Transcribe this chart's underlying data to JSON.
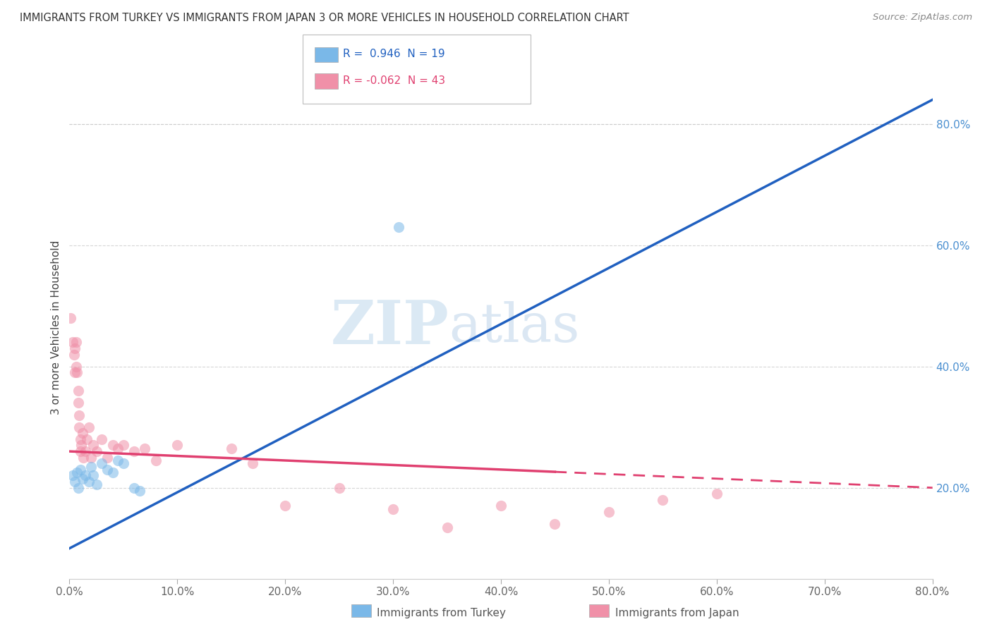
{
  "title": "IMMIGRANTS FROM TURKEY VS IMMIGRANTS FROM JAPAN 3 OR MORE VEHICLES IN HOUSEHOLD CORRELATION CHART",
  "source": "Source: ZipAtlas.com",
  "ylabel": "3 or more Vehicles in Household",
  "xmin": 0.0,
  "xmax": 80.0,
  "ymin": 5.0,
  "ymax": 88.0,
  "right_yticks": [
    20.0,
    40.0,
    60.0,
    80.0
  ],
  "watermark_zip": "ZIP",
  "watermark_atlas": "atlas",
  "legend_entries": [
    {
      "label": "R =  0.946  N = 19",
      "color": "#a8c8e8",
      "line_color": "#2060c0"
    },
    {
      "label": "R = -0.062  N = 43",
      "color": "#f4b8c8",
      "line_color": "#e04070"
    }
  ],
  "turkey_scatter": [
    [
      0.3,
      22.0
    ],
    [
      0.5,
      21.0
    ],
    [
      0.7,
      22.5
    ],
    [
      0.8,
      20.0
    ],
    [
      1.0,
      23.0
    ],
    [
      1.2,
      21.5
    ],
    [
      1.5,
      22.0
    ],
    [
      1.8,
      21.0
    ],
    [
      2.0,
      23.5
    ],
    [
      2.2,
      22.0
    ],
    [
      2.5,
      20.5
    ],
    [
      3.0,
      24.0
    ],
    [
      3.5,
      23.0
    ],
    [
      4.0,
      22.5
    ],
    [
      4.5,
      24.5
    ],
    [
      5.0,
      24.0
    ],
    [
      6.0,
      20.0
    ],
    [
      6.5,
      19.5
    ],
    [
      30.5,
      63.0
    ]
  ],
  "japan_scatter": [
    [
      0.1,
      48.0
    ],
    [
      0.3,
      44.0
    ],
    [
      0.4,
      42.0
    ],
    [
      0.5,
      43.0
    ],
    [
      0.5,
      39.0
    ],
    [
      0.6,
      44.0
    ],
    [
      0.6,
      40.0
    ],
    [
      0.7,
      39.0
    ],
    [
      0.8,
      36.0
    ],
    [
      0.8,
      34.0
    ],
    [
      0.9,
      32.0
    ],
    [
      0.9,
      30.0
    ],
    [
      1.0,
      28.0
    ],
    [
      1.0,
      26.0
    ],
    [
      1.1,
      27.0
    ],
    [
      1.2,
      29.0
    ],
    [
      1.3,
      25.0
    ],
    [
      1.5,
      26.0
    ],
    [
      1.6,
      28.0
    ],
    [
      1.8,
      30.0
    ],
    [
      2.0,
      25.0
    ],
    [
      2.2,
      27.0
    ],
    [
      2.5,
      26.0
    ],
    [
      3.0,
      28.0
    ],
    [
      3.5,
      25.0
    ],
    [
      4.0,
      27.0
    ],
    [
      4.5,
      26.5
    ],
    [
      5.0,
      27.0
    ],
    [
      6.0,
      26.0
    ],
    [
      7.0,
      26.5
    ],
    [
      8.0,
      24.5
    ],
    [
      10.0,
      27.0
    ],
    [
      15.0,
      26.5
    ],
    [
      17.0,
      24.0
    ],
    [
      20.0,
      17.0
    ],
    [
      25.0,
      20.0
    ],
    [
      30.0,
      16.5
    ],
    [
      35.0,
      13.5
    ],
    [
      40.0,
      17.0
    ],
    [
      45.0,
      14.0
    ],
    [
      50.0,
      16.0
    ],
    [
      55.0,
      18.0
    ],
    [
      60.0,
      19.0
    ]
  ],
  "turkey_line": [
    [
      0.0,
      10.0
    ],
    [
      80.0,
      84.0
    ]
  ],
  "japan_line": [
    [
      0.0,
      26.0
    ],
    [
      80.0,
      20.0
    ]
  ],
  "japan_line_dashed_start": 45.0,
  "grid_color": "#cccccc",
  "background_color": "#ffffff",
  "scatter_alpha": 0.55,
  "scatter_size": 120,
  "turkey_scatter_color": "#7ab8e8",
  "japan_scatter_color": "#f090a8"
}
